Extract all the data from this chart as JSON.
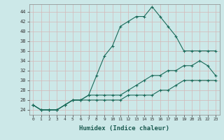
{
  "xlabel": "Humidex (Indice chaleur)",
  "ylabel": "",
  "bg_color": "#cce8e8",
  "grid_color": "#b8d8d8",
  "line_color": "#1a6b5a",
  "xlim": [
    -0.5,
    23.5
  ],
  "ylim": [
    23.0,
    45.5
  ],
  "yticks": [
    24,
    26,
    28,
    30,
    32,
    34,
    36,
    38,
    40,
    42,
    44
  ],
  "xticks": [
    0,
    1,
    2,
    3,
    4,
    5,
    6,
    7,
    8,
    9,
    10,
    11,
    12,
    13,
    14,
    15,
    16,
    17,
    18,
    19,
    20,
    21,
    22,
    23
  ],
  "line1": [
    25,
    24,
    24,
    24,
    25,
    26,
    26,
    27,
    31,
    35,
    37,
    41,
    42,
    43,
    43,
    45,
    43,
    41,
    39,
    36,
    36,
    36,
    36,
    36
  ],
  "line2": [
    25,
    24,
    24,
    24,
    25,
    26,
    26,
    27,
    27,
    27,
    27,
    27,
    28,
    29,
    30,
    31,
    31,
    32,
    32,
    33,
    33,
    34,
    33,
    31
  ],
  "line3": [
    25,
    24,
    24,
    24,
    25,
    26,
    26,
    26,
    26,
    26,
    26,
    26,
    27,
    27,
    27,
    27,
    28,
    28,
    29,
    30,
    30,
    30,
    30,
    30
  ]
}
